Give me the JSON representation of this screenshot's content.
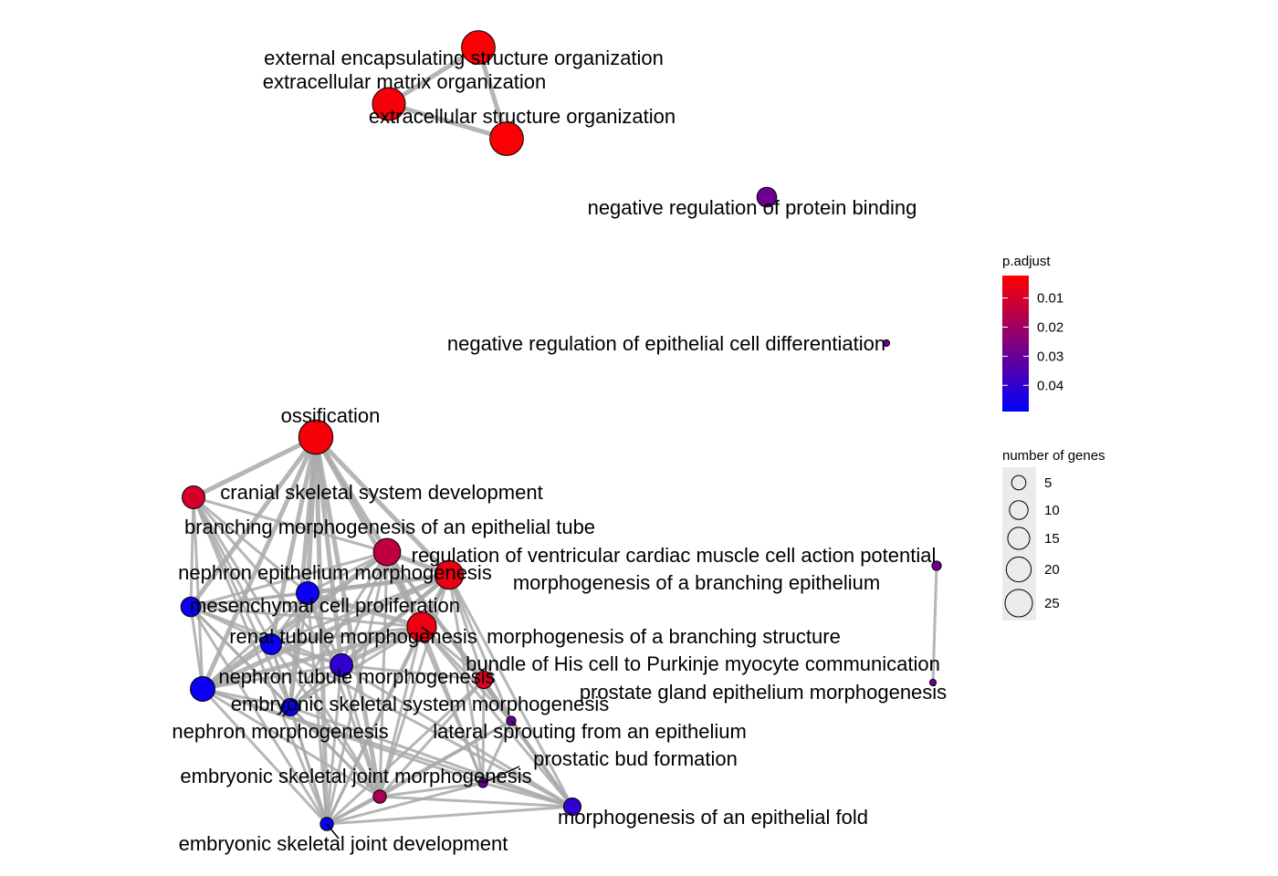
{
  "chart_data": {
    "type": "network",
    "nodes": [
      {
        "id": "n1",
        "label": "external encapsulating structure organization",
        "size": 26,
        "p_adjust": 0.003
      },
      {
        "id": "n2",
        "label": "extracellular matrix organization",
        "size": 25,
        "p_adjust": 0.004
      },
      {
        "id": "n3",
        "label": "extracellular structure organization",
        "size": 26,
        "p_adjust": 0.003
      },
      {
        "id": "n4",
        "label": "negative regulation of protein binding",
        "size": 9,
        "p_adjust": 0.029
      },
      {
        "id": "n5",
        "label": "negative regulation of epithelial cell differentiation",
        "size": 1,
        "p_adjust": 0.029
      },
      {
        "id": "n6",
        "label": "ossification",
        "size": 27,
        "p_adjust": 0.004
      },
      {
        "id": "n7",
        "label": "cranial skeletal system development",
        "size": 12,
        "p_adjust": 0.01
      },
      {
        "id": "n8",
        "label": "branching morphogenesis of an epithelial tube",
        "size": 17,
        "p_adjust": 0.014
      },
      {
        "id": "n9",
        "label": "regulation of ventricular cardiac muscle cell action potential",
        "size": 2,
        "p_adjust": 0.029
      },
      {
        "id": "n10",
        "label": "nephron epithelium morphogenesis",
        "size": 12,
        "p_adjust": 0.047
      },
      {
        "id": "n11",
        "label": "morphogenesis of a branching epithelium",
        "size": 19,
        "p_adjust": 0.006
      },
      {
        "id": "n12",
        "label": "mesenchymal cell proliferation",
        "size": 9,
        "p_adjust": 0.047
      },
      {
        "id": "n13",
        "label": "morphogenesis of a branching structure",
        "size": 20,
        "p_adjust": 0.006
      },
      {
        "id": "n14",
        "label": "renal tubule morphogenesis",
        "size": 10,
        "p_adjust": 0.047
      },
      {
        "id": "n15",
        "label": "bundle of His cell to Purkinje myocyte communication",
        "size": 1,
        "p_adjust": 0.03
      },
      {
        "id": "n16",
        "label": "nephron tubule morphogenesis",
        "size": 12,
        "p_adjust": 0.04
      },
      {
        "id": "n17",
        "label": "prostate gland epithelium morphogenesis",
        "size": 7,
        "p_adjust": 0.008
      },
      {
        "id": "n18",
        "label": "embryonic skeletal system morphogenesis",
        "size": 7,
        "p_adjust": 0.047
      },
      {
        "id": "n19",
        "label": "nephron morphogenesis",
        "size": 14,
        "p_adjust": 0.047
      },
      {
        "id": "n20",
        "label": "lateral sprouting from an epithelium",
        "size": 2,
        "p_adjust": 0.03
      },
      {
        "id": "n21",
        "label": "prostatic bud formation",
        "size": 2,
        "p_adjust": 0.03
      },
      {
        "id": "n22",
        "label": "embryonic skeletal joint morphogenesis",
        "size": 4,
        "p_adjust": 0.018
      },
      {
        "id": "n23",
        "label": "morphogenesis of an epithelial fold",
        "size": 7,
        "p_adjust": 0.04
      },
      {
        "id": "n24",
        "label": "embryonic skeletal joint development",
        "size": 4,
        "p_adjust": 0.047
      }
    ],
    "edges": [
      [
        "n1",
        "n2"
      ],
      [
        "n1",
        "n3"
      ],
      [
        "n2",
        "n3"
      ],
      [
        "n9",
        "n15"
      ],
      [
        "n6",
        "n7"
      ],
      [
        "n6",
        "n8"
      ],
      [
        "n6",
        "n10"
      ],
      [
        "n6",
        "n12"
      ],
      [
        "n6",
        "n14"
      ],
      [
        "n6",
        "n16"
      ],
      [
        "n6",
        "n18"
      ],
      [
        "n6",
        "n19"
      ],
      [
        "n6",
        "n22"
      ],
      [
        "n6",
        "n24"
      ],
      [
        "n6",
        "n11"
      ],
      [
        "n6",
        "n13"
      ],
      [
        "n7",
        "n8"
      ],
      [
        "n7",
        "n10"
      ],
      [
        "n7",
        "n12"
      ],
      [
        "n7",
        "n14"
      ],
      [
        "n7",
        "n16"
      ],
      [
        "n7",
        "n18"
      ],
      [
        "n7",
        "n19"
      ],
      [
        "n7",
        "n24"
      ],
      [
        "n7",
        "n22"
      ],
      [
        "n8",
        "n10"
      ],
      [
        "n8",
        "n11"
      ],
      [
        "n8",
        "n13"
      ],
      [
        "n8",
        "n12"
      ],
      [
        "n8",
        "n14"
      ],
      [
        "n8",
        "n16"
      ],
      [
        "n8",
        "n19"
      ],
      [
        "n8",
        "n17"
      ],
      [
        "n8",
        "n20"
      ],
      [
        "n8",
        "n21"
      ],
      [
        "n8",
        "n23"
      ],
      [
        "n8",
        "n22"
      ],
      [
        "n8",
        "n24"
      ],
      [
        "n8",
        "n18"
      ],
      [
        "n10",
        "n12"
      ],
      [
        "n10",
        "n14"
      ],
      [
        "n10",
        "n16"
      ],
      [
        "n10",
        "n19"
      ],
      [
        "n10",
        "n11"
      ],
      [
        "n10",
        "n13"
      ],
      [
        "n10",
        "n18"
      ],
      [
        "n10",
        "n24"
      ],
      [
        "n10",
        "n22"
      ],
      [
        "n11",
        "n13"
      ],
      [
        "n11",
        "n12"
      ],
      [
        "n11",
        "n14"
      ],
      [
        "n11",
        "n16"
      ],
      [
        "n11",
        "n19"
      ],
      [
        "n11",
        "n17"
      ],
      [
        "n11",
        "n20"
      ],
      [
        "n11",
        "n21"
      ],
      [
        "n11",
        "n23"
      ],
      [
        "n11",
        "n22"
      ],
      [
        "n11",
        "n24"
      ],
      [
        "n11",
        "n18"
      ],
      [
        "n12",
        "n14"
      ],
      [
        "n12",
        "n16"
      ],
      [
        "n12",
        "n19"
      ],
      [
        "n12",
        "n13"
      ],
      [
        "n12",
        "n18"
      ],
      [
        "n12",
        "n22"
      ],
      [
        "n12",
        "n24"
      ],
      [
        "n13",
        "n14"
      ],
      [
        "n13",
        "n16"
      ],
      [
        "n13",
        "n19"
      ],
      [
        "n13",
        "n17"
      ],
      [
        "n13",
        "n20"
      ],
      [
        "n13",
        "n21"
      ],
      [
        "n13",
        "n23"
      ],
      [
        "n13",
        "n22"
      ],
      [
        "n13",
        "n24"
      ],
      [
        "n13",
        "n18"
      ],
      [
        "n14",
        "n16"
      ],
      [
        "n14",
        "n19"
      ],
      [
        "n14",
        "n18"
      ],
      [
        "n14",
        "n24"
      ],
      [
        "n14",
        "n22"
      ],
      [
        "n14",
        "n23"
      ],
      [
        "n16",
        "n19"
      ],
      [
        "n16",
        "n18"
      ],
      [
        "n16",
        "n24"
      ],
      [
        "n16",
        "n22"
      ],
      [
        "n16",
        "n23"
      ],
      [
        "n16",
        "n17"
      ],
      [
        "n17",
        "n20"
      ],
      [
        "n17",
        "n21"
      ],
      [
        "n17",
        "n23"
      ],
      [
        "n17",
        "n22"
      ],
      [
        "n17",
        "n24"
      ],
      [
        "n18",
        "n19"
      ],
      [
        "n18",
        "n22"
      ],
      [
        "n18",
        "n24"
      ],
      [
        "n18",
        "n23"
      ],
      [
        "n19",
        "n24"
      ],
      [
        "n19",
        "n22"
      ],
      [
        "n19",
        "n23"
      ],
      [
        "n19",
        "n21"
      ],
      [
        "n20",
        "n21"
      ],
      [
        "n20",
        "n23"
      ],
      [
        "n20",
        "n22"
      ],
      [
        "n20",
        "n24"
      ],
      [
        "n21",
        "n23"
      ],
      [
        "n21",
        "n22"
      ],
      [
        "n21",
        "n24"
      ],
      [
        "n22",
        "n23"
      ],
      [
        "n22",
        "n24"
      ],
      [
        "n23",
        "n24"
      ]
    ],
    "legend_color": {
      "title": "p.adjust",
      "ticks": [
        "0.01",
        "0.02",
        "0.03",
        "0.04"
      ],
      "tick_values": [
        0.01,
        0.02,
        0.03,
        0.04
      ],
      "range": [
        0.0023,
        0.049
      ],
      "low_color": "#FF0000",
      "high_color": "#0000FF"
    },
    "legend_size": {
      "title": "number of genes",
      "ticks": [
        "5",
        "10",
        "15",
        "20",
        "25"
      ],
      "tick_values": [
        5,
        10,
        15,
        20,
        25
      ]
    },
    "legend_placement": "right",
    "edge_color": "#A9A9A9",
    "node_border_color": "#000000"
  }
}
